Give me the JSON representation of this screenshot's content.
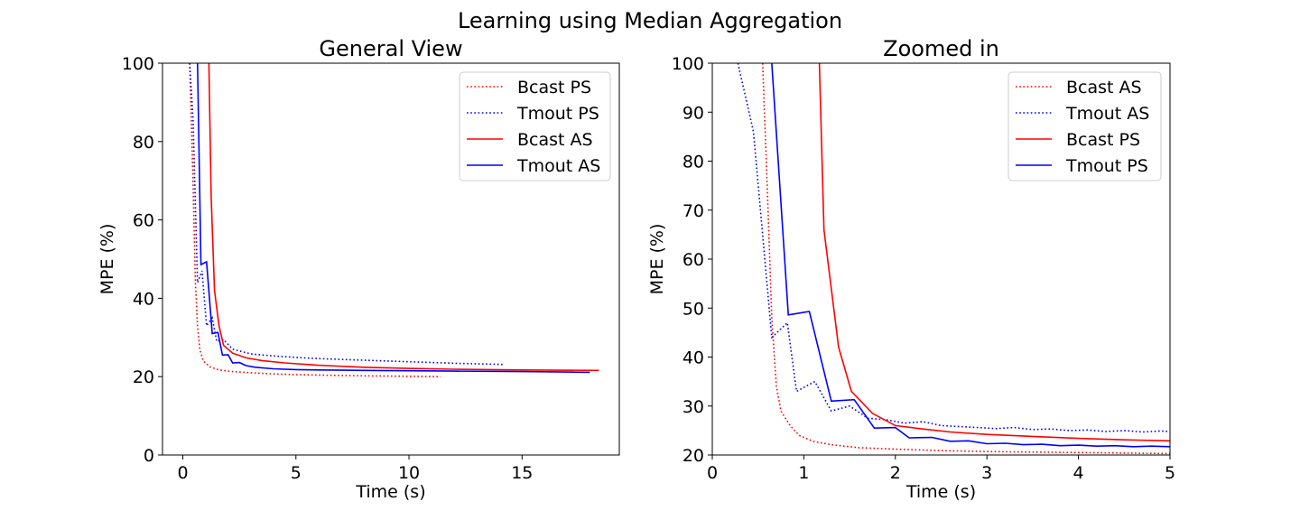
{
  "figure": {
    "suptitle": "Learning using Median Aggregation"
  },
  "colors": {
    "bcast": "#ff0000",
    "tmout": "#0000ff",
    "axis": "#000000",
    "legend_border": "#cccccc"
  },
  "chart_data": [
    {
      "type": "line",
      "title": "General View",
      "xlabel": "Time (s)",
      "ylabel": "MPE (%)",
      "xlim": [
        -0.9,
        19.3
      ],
      "ylim": [
        0,
        100
      ],
      "xticks": [
        0,
        5,
        10,
        15
      ],
      "yticks": [
        0,
        20,
        40,
        60,
        80,
        100
      ],
      "grid": false,
      "legend_position": "top-right",
      "series": [
        {
          "name": "Bcast PS",
          "color": "#ff0000",
          "style": "dotted",
          "x": [
            0.3,
            0.45,
            0.55,
            0.65,
            0.75,
            0.9,
            1.2,
            1.6,
            2.2,
            3,
            4,
            5,
            6,
            8,
            10,
            11.4
          ],
          "y": [
            100,
            70,
            45,
            33,
            27,
            24,
            22.5,
            21.7,
            21.3,
            21,
            20.7,
            20.5,
            20.4,
            20.2,
            20.1,
            20
          ]
        },
        {
          "name": "Tmout PS",
          "color": "#0000ff",
          "style": "dotted",
          "x": [
            0.3,
            0.45,
            0.65,
            0.85,
            1.05,
            1.3,
            1.5,
            1.8,
            2.2,
            3,
            4,
            5,
            6,
            8,
            10,
            12,
            14.2
          ],
          "y": [
            100,
            86,
            44,
            47,
            33,
            35,
            29,
            29.5,
            27,
            25.8,
            25.3,
            24.9,
            24.6,
            24.2,
            23.8,
            23.4,
            23.1
          ]
        },
        {
          "name": "Bcast AS",
          "color": "#ff0000",
          "style": "solid",
          "x": [
            1.15,
            1.25,
            1.4,
            1.6,
            1.8,
            2.2,
            2.8,
            3.5,
            4.5,
            6,
            8,
            10,
            12,
            15,
            18.4
          ],
          "y": [
            100,
            66,
            42,
            33,
            28,
            26,
            24.8,
            24.1,
            23.5,
            22.9,
            22.4,
            22.1,
            21.9,
            21.7,
            21.6
          ]
        },
        {
          "name": "Tmout AS",
          "color": "#0000ff",
          "style": "solid",
          "x": [
            0.65,
            0.8,
            1.05,
            1.3,
            1.55,
            1.75,
            2,
            2.2,
            2.5,
            2.8,
            3.2,
            4,
            5,
            6,
            8,
            10,
            12,
            15,
            18
          ],
          "y": [
            100,
            48.6,
            49.3,
            31,
            31.3,
            25.5,
            25.6,
            23.5,
            23.6,
            22.8,
            22.4,
            22,
            21.8,
            21.7,
            21.6,
            21.5,
            21.4,
            21.3,
            21.1
          ]
        }
      ]
    },
    {
      "type": "line",
      "title": "Zoomed in",
      "xlabel": "Time (s)",
      "ylabel": "MPE (%)",
      "xlim": [
        0,
        5
      ],
      "ylim": [
        20,
        100
      ],
      "xticks": [
        0,
        1,
        2,
        3,
        4,
        5
      ],
      "yticks": [
        20,
        30,
        40,
        50,
        60,
        70,
        80,
        90,
        100
      ],
      "grid": false,
      "legend_position": "top-right",
      "series": [
        {
          "name": "Bcast AS",
          "color": "#ff0000",
          "style": "dotted",
          "x": [
            0.55,
            0.6,
            0.65,
            0.7,
            0.75,
            0.85,
            0.95,
            1.1,
            1.3,
            1.6,
            2,
            2.5,
            3,
            4,
            5
          ],
          "y": [
            100,
            75,
            48,
            34,
            29,
            26,
            24,
            22.8,
            22.1,
            21.5,
            21.2,
            20.9,
            20.7,
            20.5,
            20.3
          ]
        },
        {
          "name": "Tmout AS",
          "color": "#0000ff",
          "style": "dotted",
          "x": [
            0.28,
            0.45,
            0.65,
            0.82,
            0.92,
            1.12,
            1.3,
            1.5,
            1.7,
            1.9,
            2.1,
            2.3,
            2.5,
            2.7,
            2.9,
            3.1,
            3.3,
            3.5,
            3.7,
            3.9,
            4.1,
            4.3,
            4.5,
            4.7,
            4.9,
            5
          ],
          "y": [
            100,
            86,
            44,
            47,
            33,
            35,
            29,
            30,
            27.5,
            27.2,
            26.5,
            26.8,
            26,
            25.8,
            25.6,
            25.4,
            25.6,
            25.2,
            25.3,
            25,
            25.1,
            24.8,
            25,
            24.7,
            24.9,
            24.8
          ]
        },
        {
          "name": "Bcast PS",
          "color": "#ff0000",
          "style": "solid",
          "x": [
            1.17,
            1.22,
            1.38,
            1.52,
            1.75,
            2,
            2.3,
            2.6,
            3,
            3.5,
            4,
            4.5,
            5
          ],
          "y": [
            100,
            66,
            42,
            33,
            28.5,
            26,
            25.3,
            24.7,
            24.2,
            23.8,
            23.4,
            23.1,
            22.9
          ]
        },
        {
          "name": "Tmout PS",
          "color": "#0000ff",
          "style": "solid",
          "x": [
            0.65,
            0.83,
            1.06,
            1.3,
            1.55,
            1.77,
            2.0,
            2.15,
            2.4,
            2.6,
            2.8,
            3.0,
            3.2,
            3.4,
            3.6,
            3.8,
            4.0,
            4.2,
            4.4,
            4.6,
            4.8,
            5
          ],
          "y": [
            100,
            48.6,
            49.3,
            31,
            31.3,
            25.5,
            25.6,
            23.5,
            23.6,
            22.8,
            22.9,
            22.3,
            22.4,
            22.1,
            22.2,
            21.9,
            22,
            21.8,
            21.9,
            21.7,
            21.8,
            21.7
          ]
        }
      ]
    }
  ]
}
